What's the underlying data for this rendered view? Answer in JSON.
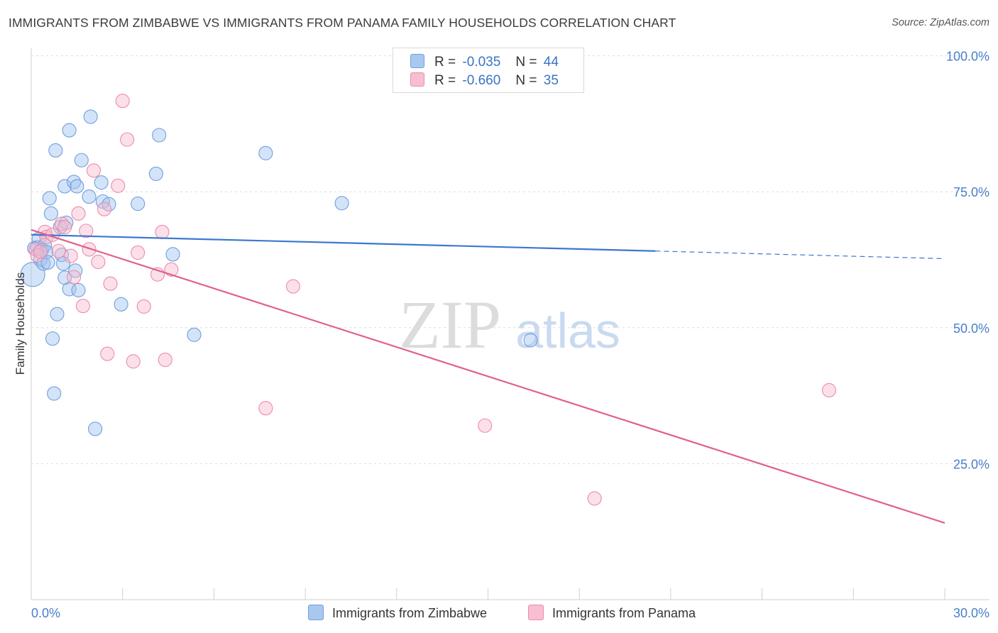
{
  "header": {
    "title": "IMMIGRANTS FROM ZIMBABWE VS IMMIGRANTS FROM PANAMA FAMILY HOUSEHOLDS CORRELATION CHART",
    "source": "Source: ZipAtlas.com"
  },
  "watermark": {
    "zip": "ZIP",
    "atlas": "atlas"
  },
  "legend": {
    "rows": [
      {
        "r_label": "R =",
        "r_value": "-0.035",
        "n_label": "N =",
        "n_value": "44",
        "color": "#a9c8f0",
        "border": "#6f9fdc"
      },
      {
        "r_label": "R =",
        "r_value": "-0.660",
        "n_label": "N =",
        "n_value": "35",
        "color": "#f7bfd1",
        "border": "#ec8bab"
      }
    ]
  },
  "bottom_legend": {
    "zimbabwe": "Immigrants from Zimbabwe",
    "panama": "Immigrants from Panama"
  },
  "chart_data": {
    "type": "scatter",
    "ylabel": "Family Households",
    "xlabel": "",
    "xlim": [
      0,
      30
    ],
    "ylim": [
      0,
      100
    ],
    "x_tick_labels": {
      "min": "0.0%",
      "max": "30.0%"
    },
    "y_ticks": [
      {
        "value": 25,
        "label": "25.0%"
      },
      {
        "value": 50,
        "label": "50.0%"
      },
      {
        "value": 75,
        "label": "75.0%"
      },
      {
        "value": 100,
        "label": "100.0%"
      }
    ],
    "grid": "horizontal dashed",
    "colors": {
      "zimbabwe": "#3a78cf",
      "panama": "#e0608f"
    },
    "series": [
      {
        "name": "Immigrants from Zimbabwe",
        "trend": {
          "x0": 0,
          "y0": 67.1,
          "x1": 20.5,
          "y1": 64.1,
          "dash_x1": 30,
          "dash_y1": 62.7
        },
        "points": [
          [
            0.05,
            59.8,
            22
          ],
          [
            0.2,
            64.8,
            12
          ],
          [
            0.25,
            66.3,
            12
          ],
          [
            0.35,
            64.3,
            12
          ],
          [
            0.3,
            62.5,
            12
          ],
          [
            0.4,
            61.8,
            12
          ],
          [
            0.45,
            65.2,
            12
          ],
          [
            0.5,
            63.9,
            12
          ],
          [
            0.55,
            62.0,
            12
          ],
          [
            0.6,
            73.8,
            12
          ],
          [
            0.65,
            71.0,
            12
          ],
          [
            0.7,
            48.0,
            12
          ],
          [
            0.75,
            37.9,
            12
          ],
          [
            0.8,
            82.6,
            12
          ],
          [
            0.85,
            52.5,
            12
          ],
          [
            0.95,
            68.5,
            12
          ],
          [
            1.0,
            63.4,
            12
          ],
          [
            1.05,
            61.8,
            12
          ],
          [
            1.1,
            59.2,
            12
          ],
          [
            1.15,
            69.3,
            12
          ],
          [
            1.1,
            76.0,
            12
          ],
          [
            1.25,
            57.1,
            12
          ],
          [
            1.25,
            86.3,
            12
          ],
          [
            1.4,
            76.8,
            12
          ],
          [
            1.45,
            60.5,
            12
          ],
          [
            1.5,
            76.0,
            12
          ],
          [
            1.55,
            56.9,
            12
          ],
          [
            1.65,
            80.8,
            12
          ],
          [
            1.9,
            74.1,
            12
          ],
          [
            1.95,
            88.8,
            12
          ],
          [
            2.1,
            31.4,
            12
          ],
          [
            2.3,
            76.7,
            12
          ],
          [
            2.35,
            73.2,
            12
          ],
          [
            2.55,
            72.7,
            12
          ],
          [
            2.95,
            54.3,
            12
          ],
          [
            3.5,
            72.8,
            12
          ],
          [
            4.1,
            78.3,
            12
          ],
          [
            4.2,
            85.4,
            12
          ],
          [
            4.65,
            63.5,
            12
          ],
          [
            5.35,
            48.7,
            12
          ],
          [
            7.7,
            82.1,
            12
          ],
          [
            10.2,
            72.9,
            12
          ],
          [
            16.4,
            47.7,
            12
          ],
          [
            0.1,
            64.6,
            12
          ]
        ]
      },
      {
        "name": "Immigrants from Panama",
        "trend": {
          "x0": 0,
          "y0": 68.0,
          "x1": 30,
          "y1": 14.1
        },
        "points": [
          [
            0.15,
            64.4,
            12
          ],
          [
            0.2,
            63.3,
            12
          ],
          [
            0.3,
            64.0,
            12
          ],
          [
            0.45,
            67.6,
            12
          ],
          [
            0.5,
            66.7,
            12
          ],
          [
            0.7,
            67.1,
            12
          ],
          [
            0.9,
            64.1,
            12
          ],
          [
            1.0,
            69.1,
            12
          ],
          [
            1.1,
            68.5,
            12
          ],
          [
            1.3,
            63.2,
            12
          ],
          [
            1.4,
            59.3,
            12
          ],
          [
            1.55,
            71.0,
            12
          ],
          [
            1.7,
            54.0,
            12
          ],
          [
            1.8,
            67.8,
            12
          ],
          [
            1.9,
            64.4,
            12
          ],
          [
            2.05,
            78.9,
            12
          ],
          [
            2.2,
            62.1,
            12
          ],
          [
            2.4,
            71.8,
            12
          ],
          [
            2.5,
            45.2,
            12
          ],
          [
            2.6,
            58.1,
            12
          ],
          [
            2.85,
            76.1,
            12
          ],
          [
            3.0,
            91.7,
            12
          ],
          [
            3.15,
            84.6,
            12
          ],
          [
            3.35,
            43.8,
            12
          ],
          [
            3.5,
            63.8,
            12
          ],
          [
            3.7,
            53.9,
            12
          ],
          [
            4.15,
            59.8,
            12
          ],
          [
            4.3,
            67.6,
            12
          ],
          [
            4.4,
            44.1,
            12
          ],
          [
            4.6,
            60.7,
            12
          ],
          [
            7.7,
            35.2,
            12
          ],
          [
            8.6,
            57.6,
            12
          ],
          [
            14.9,
            32.0,
            12
          ],
          [
            18.5,
            18.6,
            12
          ],
          [
            26.2,
            38.5,
            12
          ]
        ]
      }
    ]
  }
}
